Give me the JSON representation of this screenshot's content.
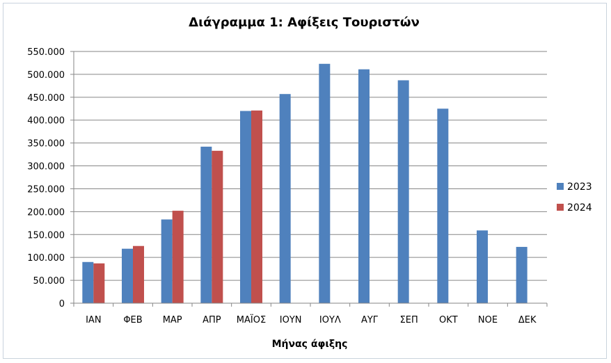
{
  "chart_data": {
    "type": "bar",
    "title": "Διάγραμμα 1: Αφίξεις Τουριστών",
    "xlabel": "Μήνας άφιξης",
    "ylabel": "",
    "categories": [
      "ΙΑΝ",
      "ΦΕΒ",
      "ΜΑΡ",
      "ΑΠΡ",
      "ΜΑΪΟΣ",
      "ΙΟΥΝ",
      "ΙΟΥΛ",
      "ΑΥΓ",
      "ΣΕΠ",
      "ΟΚΤ",
      "ΝΟΕ",
      "ΔΕΚ"
    ],
    "series": [
      {
        "name": "2023",
        "color": "#4f81bd",
        "values": [
          90000,
          119000,
          183000,
          342000,
          420000,
          457000,
          523000,
          511000,
          487000,
          425000,
          159000,
          123000
        ]
      },
      {
        "name": "2024",
        "color": "#c0504d",
        "values": [
          87000,
          125000,
          202000,
          333000,
          421000,
          null,
          null,
          null,
          null,
          null,
          null,
          null
        ]
      }
    ],
    "ylim": [
      0,
      550000
    ],
    "yticks": [
      0,
      50000,
      100000,
      150000,
      200000,
      250000,
      300000,
      350000,
      400000,
      450000,
      500000,
      550000
    ],
    "ytick_labels": [
      "0",
      "50.000",
      "100.000",
      "150.000",
      "200.000",
      "250.000",
      "300.000",
      "350.000",
      "400.000",
      "450.000",
      "500.000",
      "550.000"
    ],
    "grid": true,
    "legend_position": "right"
  }
}
